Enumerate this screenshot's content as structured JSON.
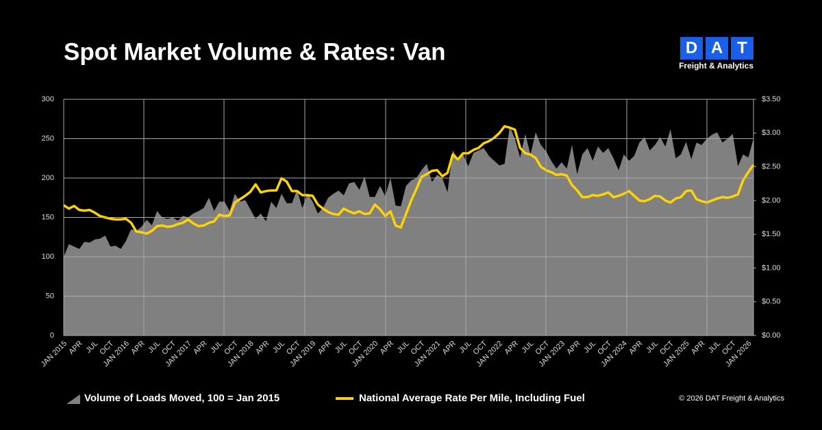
{
  "chart_data": {
    "type": "area_line",
    "title": "Spot Market Volume & Rates: Van",
    "categories": [
      "JAN 2015",
      null,
      null,
      "APR",
      null,
      null,
      "JUL",
      null,
      null,
      "OCT",
      null,
      null,
      "JAN 2016",
      null,
      null,
      "APR",
      null,
      null,
      "JUL",
      null,
      null,
      "OCT",
      null,
      null,
      "JAN 2017",
      null,
      null,
      "APR",
      null,
      null,
      "JUL",
      null,
      null,
      "OCT",
      null,
      null,
      "JAN 2018",
      null,
      null,
      "APR",
      null,
      null,
      "JUL",
      null,
      null,
      "OCT",
      null,
      null,
      "JAN 2019",
      null,
      null,
      "APR",
      null,
      null,
      "JUL",
      null,
      null,
      "OCT",
      null,
      null,
      "JAN 2020",
      null,
      null,
      "APR",
      null,
      null,
      "JUL",
      null,
      null,
      "OCT",
      null,
      null,
      "JAN 2021",
      null,
      null,
      "APR",
      null,
      null,
      "JUL",
      null,
      null,
      "OCT",
      null,
      null,
      "JAN 2022",
      null,
      null,
      "APR",
      null,
      null,
      "JUL",
      null,
      null,
      "OCT",
      null,
      null,
      "JAN 2023",
      null,
      null,
      "APR",
      null,
      null,
      "JUL",
      null,
      null,
      "OCT",
      null,
      null,
      "JAN 2024",
      null,
      null,
      "APR",
      null,
      null,
      "JUL",
      null,
      null,
      "OCT",
      null,
      null,
      "JAN 2025",
      null,
      null,
      "APR",
      null,
      null,
      "JUL",
      null,
      null,
      "OCT",
      null,
      null,
      "JAN 2026",
      null
    ],
    "series": [
      {
        "name": "Volume of Loads Moved, 100 = Jan 2015",
        "color": "#808080",
        "kind": "area",
        "values": [
          100,
          116,
          113,
          110,
          119,
          118,
          122,
          123,
          127,
          113,
          114,
          110,
          120,
          135,
          133,
          138,
          147,
          140,
          158,
          150,
          148,
          150,
          146,
          152,
          150,
          155,
          158,
          162,
          175,
          158,
          170,
          170,
          158,
          180,
          170,
          172,
          160,
          148,
          155,
          145,
          170,
          162,
          180,
          168,
          168,
          185,
          162,
          180,
          170,
          155,
          162,
          175,
          180,
          184,
          178,
          193,
          195,
          185,
          202,
          176,
          176,
          190,
          177,
          200,
          165,
          164,
          190,
          197,
          200,
          210,
          218,
          195,
          204,
          200,
          182,
          235,
          225,
          230,
          215,
          232,
          235,
          238,
          228,
          222,
          216,
          218,
          265,
          250,
          226,
          256,
          230,
          258,
          242,
          234,
          222,
          212,
          220,
          212,
          242,
          205,
          230,
          238,
          222,
          240,
          232,
          238,
          225,
          210,
          230,
          222,
          228,
          245,
          252,
          235,
          242,
          252,
          240,
          262,
          225,
          230,
          246,
          224,
          245,
          242,
          250,
          255,
          258,
          245,
          250,
          256,
          215,
          230,
          226,
          250
        ]
      },
      {
        "name": "National Average Rate Per Mile, Including Fuel",
        "color": "#ffd400",
        "kind": "line",
        "axis": "y2",
        "values": [
          1.93,
          1.88,
          1.92,
          1.86,
          1.85,
          1.86,
          1.82,
          1.77,
          1.75,
          1.73,
          1.72,
          1.72,
          1.73,
          1.67,
          1.54,
          1.53,
          1.51,
          1.55,
          1.62,
          1.63,
          1.61,
          1.62,
          1.65,
          1.67,
          1.72,
          1.66,
          1.62,
          1.63,
          1.67,
          1.69,
          1.79,
          1.77,
          1.78,
          1.97,
          2.02,
          2.07,
          2.13,
          2.24,
          2.12,
          2.14,
          2.15,
          2.15,
          2.33,
          2.28,
          2.14,
          2.14,
          2.08,
          2.08,
          2.07,
          1.94,
          1.88,
          1.83,
          1.8,
          1.79,
          1.88,
          1.84,
          1.81,
          1.84,
          1.8,
          1.81,
          1.94,
          1.87,
          1.77,
          1.84,
          1.63,
          1.6,
          1.8,
          2.0,
          2.17,
          2.35,
          2.39,
          2.44,
          2.45,
          2.36,
          2.41,
          2.68,
          2.61,
          2.7,
          2.7,
          2.75,
          2.78,
          2.85,
          2.88,
          2.93,
          3.0,
          3.1,
          3.08,
          3.05,
          2.78,
          2.7,
          2.68,
          2.63,
          2.5,
          2.45,
          2.42,
          2.38,
          2.39,
          2.37,
          2.23,
          2.15,
          2.05,
          2.05,
          2.08,
          2.07,
          2.09,
          2.12,
          2.05,
          2.07,
          2.1,
          2.14,
          2.07,
          2.0,
          1.99,
          2.02,
          2.07,
          2.06,
          2.0,
          1.97,
          2.03,
          2.05,
          2.14,
          2.15,
          2.02,
          1.99,
          1.97,
          2.0,
          2.03,
          2.05,
          2.04,
          2.06,
          2.09,
          2.3,
          2.42,
          2.53
        ]
      }
    ],
    "ylim": [
      0,
      300
    ],
    "yticks": [
      0,
      50,
      100,
      150,
      200,
      250,
      300
    ],
    "y2lim": [
      0,
      3.5
    ],
    "y2ticks": [
      {
        "value": 0,
        "label": "$0.00"
      },
      {
        "value": 0.5,
        "label": "$0.50"
      },
      {
        "value": 1,
        "label": "$1.00"
      },
      {
        "value": 1.5,
        "label": "$1.50"
      },
      {
        "value": 2,
        "label": "$2.00"
      },
      {
        "value": 2.5,
        "label": "$2.50"
      },
      {
        "value": 3,
        "label": "$3.00"
      },
      {
        "value": 3.5,
        "label": "$3.50"
      }
    ],
    "grid": true
  },
  "logo": {
    "letters": [
      "D",
      "A",
      "T"
    ],
    "tagline": "Freight & Analytics"
  },
  "copyright": "© 2026 DAT Freight & Analytics"
}
